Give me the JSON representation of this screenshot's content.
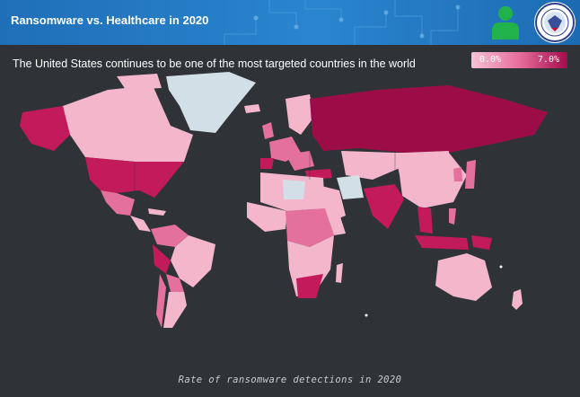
{
  "header": {
    "title": "Ransomware vs. Healthcare in 2020",
    "user_icon": "user-icon",
    "seal_icon": "agency-seal-icon"
  },
  "subtitle": "The United States continues to be one of the most targeted countries in the world",
  "legend": {
    "min": "0.0%",
    "max": "7.0%",
    "colors": [
      "#f6c2d4",
      "#e56e9b",
      "#a60b4d"
    ]
  },
  "caption": "Rate of ransomware detections in 2020",
  "colors": {
    "background": "#2f3338",
    "no_data": "#d3dfe6",
    "low": "#f3b6cb",
    "mid": "#e3719c",
    "high": "#c21a5a",
    "max": "#9c0d47"
  }
}
